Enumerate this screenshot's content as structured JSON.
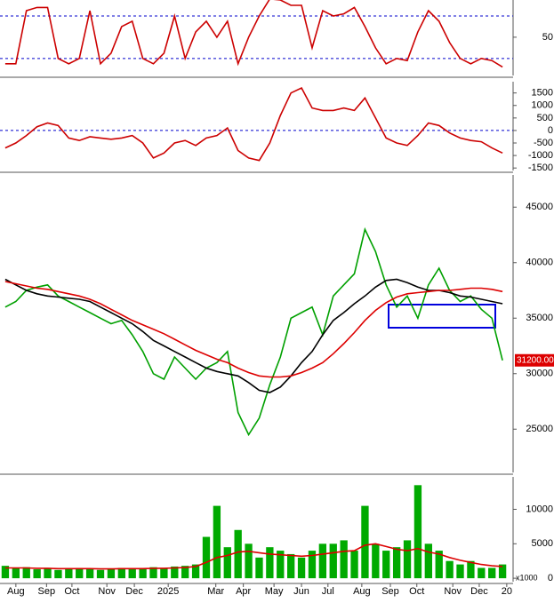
{
  "chart_data": [
    {
      "type": "line",
      "xlim": [
        -0.5,
        48
      ],
      "ylim": [
        14,
        85
      ],
      "yticks": [
        50
      ],
      "reference_lines": [
        30,
        70
      ],
      "x": [
        0,
        1,
        2,
        3,
        4,
        5,
        6,
        7,
        8,
        9,
        10,
        11,
        12,
        13,
        14,
        15,
        16,
        17,
        18,
        19,
        20,
        21,
        22,
        23,
        24,
        25,
        26,
        27,
        28,
        29,
        30,
        31,
        32,
        33,
        34,
        35,
        36,
        37,
        38,
        39,
        40,
        41,
        42,
        43,
        44,
        45,
        46,
        47
      ],
      "series": [
        {
          "color": "#cc0000",
          "values": [
            25,
            25,
            75,
            78,
            78,
            30,
            25,
            30,
            75,
            25,
            35,
            60,
            65,
            30,
            25,
            35,
            70,
            30,
            55,
            65,
            50,
            65,
            25,
            50,
            70,
            86,
            85,
            80,
            80,
            40,
            75,
            70,
            72,
            78,
            60,
            40,
            25,
            30,
            28,
            55,
            75,
            65,
            45,
            30,
            25,
            30,
            28,
            22
          ]
        }
      ]
    },
    {
      "type": "line",
      "xlim": [
        -0.5,
        48
      ],
      "ylim": [
        -1600,
        1950
      ],
      "yticks": [
        1500,
        1000,
        500,
        0,
        -500,
        -1000,
        -1500
      ],
      "reference_lines": [
        0
      ],
      "x": [
        0,
        1,
        2,
        3,
        4,
        5,
        6,
        7,
        8,
        9,
        10,
        11,
        12,
        13,
        14,
        15,
        16,
        17,
        18,
        19,
        20,
        21,
        22,
        23,
        24,
        25,
        26,
        27,
        28,
        29,
        30,
        31,
        32,
        33,
        34,
        35,
        36,
        37,
        38,
        39,
        40,
        41,
        42,
        43,
        44,
        45,
        46,
        47
      ],
      "series": [
        {
          "color": "#cc0000",
          "values": [
            -700,
            -500,
            -200,
            150,
            300,
            200,
            -300,
            -400,
            -250,
            -300,
            -350,
            -300,
            -200,
            -500,
            -1100,
            -900,
            -500,
            -400,
            -600,
            -300,
            -200,
            100,
            -800,
            -1100,
            -1200,
            -500,
            600,
            1500,
            1700,
            900,
            800,
            800,
            900,
            800,
            1300,
            500,
            -300,
            -500,
            -600,
            -200,
            300,
            200,
            -100,
            -300,
            -400,
            -450,
            -700,
            -900
          ]
        }
      ]
    },
    {
      "type": "line",
      "xlim": [
        -0.5,
        48
      ],
      "ylim": [
        21100,
        47900
      ],
      "yticks": [
        45000,
        40000,
        35000,
        30000,
        25000
      ],
      "last_value_label": "31200.00",
      "x": [
        0,
        1,
        2,
        3,
        4,
        5,
        6,
        7,
        8,
        9,
        10,
        11,
        12,
        13,
        14,
        15,
        16,
        17,
        18,
        19,
        20,
        21,
        22,
        23,
        24,
        25,
        26,
        27,
        28,
        29,
        30,
        31,
        32,
        33,
        34,
        35,
        36,
        37,
        38,
        39,
        40,
        41,
        42,
        43,
        44,
        45,
        46,
        47
      ],
      "series": [
        {
          "color": "#00a000",
          "values": [
            36000,
            36500,
            37500,
            37800,
            38000,
            37000,
            36500,
            36000,
            35500,
            35000,
            34500,
            34800,
            33500,
            32000,
            30000,
            29500,
            31500,
            30500,
            29500,
            30500,
            31000,
            32000,
            26500,
            24500,
            26000,
            29000,
            31500,
            35000,
            35500,
            36000,
            33500,
            37000,
            38000,
            39000,
            43000,
            41000,
            38000,
            36000,
            37000,
            35000,
            38000,
            39500,
            37500,
            36500,
            37000,
            35800,
            35000,
            31200
          ]
        },
        {
          "color": "#000000",
          "values": [
            38500,
            38000,
            37500,
            37200,
            37000,
            36900,
            36800,
            36700,
            36500,
            36000,
            35500,
            35000,
            34500,
            33800,
            33000,
            32500,
            32000,
            31500,
            31000,
            30500,
            30200,
            30000,
            29800,
            29200,
            28500,
            28300,
            28800,
            29800,
            31000,
            32000,
            33500,
            34800,
            35500,
            36300,
            37000,
            37800,
            38400,
            38500,
            38200,
            37800,
            37500,
            37500,
            37300,
            37000,
            36900,
            36700,
            36500,
            36300
          ]
        },
        {
          "color": "#dd0000",
          "values": [
            38300,
            38100,
            37900,
            37700,
            37600,
            37400,
            37200,
            37000,
            36700,
            36300,
            35800,
            35300,
            34800,
            34400,
            34000,
            33600,
            33100,
            32600,
            32100,
            31700,
            31300,
            31000,
            30500,
            30100,
            29800,
            29700,
            29700,
            29800,
            30100,
            30500,
            31000,
            31800,
            32700,
            33700,
            34800,
            35700,
            36400,
            36900,
            37200,
            37300,
            37400,
            37500,
            37500,
            37600,
            37700,
            37700,
            37600,
            37400
          ]
        }
      ]
    },
    {
      "type": "bar",
      "xlim": [
        -0.5,
        48
      ],
      "ylim": [
        -500,
        14700
      ],
      "yticks": [
        10000,
        5000,
        0
      ],
      "unit_label": "x1000",
      "xticks": [
        {
          "value": 1,
          "label": "Aug"
        },
        {
          "value": 3.9,
          "label": "Sep"
        },
        {
          "value": 6.3,
          "label": "Oct"
        },
        {
          "value": 9.6,
          "label": "Nov"
        },
        {
          "value": 12.2,
          "label": "Dec"
        },
        {
          "value": 15.4,
          "label": "2025"
        },
        {
          "value": 19.9,
          "label": "Mar"
        },
        {
          "value": 22.5,
          "label": "Apr"
        },
        {
          "value": 25.4,
          "label": "May"
        },
        {
          "value": 28,
          "label": "Jun"
        },
        {
          "value": 30.5,
          "label": "Jul"
        },
        {
          "value": 33.7,
          "label": "Aug"
        },
        {
          "value": 36.4,
          "label": "Sep"
        },
        {
          "value": 38.9,
          "label": "Oct"
        },
        {
          "value": 42.3,
          "label": "Nov"
        },
        {
          "value": 44.8,
          "label": "Dec"
        },
        {
          "value": 47.4,
          "label": "20"
        }
      ],
      "x": [
        0,
        1,
        2,
        3,
        4,
        5,
        6,
        7,
        8,
        9,
        10,
        11,
        12,
        13,
        14,
        15,
        16,
        17,
        18,
        19,
        20,
        21,
        22,
        23,
        24,
        25,
        26,
        27,
        28,
        29,
        30,
        31,
        32,
        33,
        34,
        35,
        36,
        37,
        38,
        39,
        40,
        41,
        42,
        43,
        44,
        45,
        46,
        47
      ],
      "series": [
        {
          "type": "bar",
          "color": "#00aa00",
          "values": [
            1800,
            1500,
            1600,
            1300,
            1500,
            1200,
            1400,
            1500,
            1300,
            1200,
            1400,
            1500,
            1300,
            1500,
            1600,
            1400,
            1700,
            1800,
            2000,
            6000,
            10500,
            4500,
            7000,
            5000,
            3000,
            4500,
            4000,
            3500,
            3000,
            4000,
            5000,
            5000,
            5500,
            4000,
            10500,
            5000,
            4000,
            4500,
            5500,
            13500,
            5000,
            4000,
            2500,
            2000,
            2500,
            1500,
            1500,
            2000
          ]
        },
        {
          "type": "line",
          "color": "#dd0000",
          "values": [
            1500,
            1500,
            1500,
            1450,
            1450,
            1400,
            1400,
            1400,
            1400,
            1350,
            1350,
            1400,
            1400,
            1400,
            1450,
            1450,
            1500,
            1550,
            1700,
            2300,
            3000,
            3300,
            3800,
            3900,
            3700,
            3500,
            3400,
            3300,
            3200,
            3300,
            3500,
            3700,
            3900,
            4000,
            4800,
            5000,
            4600,
            4200,
            4000,
            4300,
            3800,
            3500,
            3000,
            2600,
            2300,
            2000,
            1800,
            1700
          ]
        }
      ]
    }
  ]
}
